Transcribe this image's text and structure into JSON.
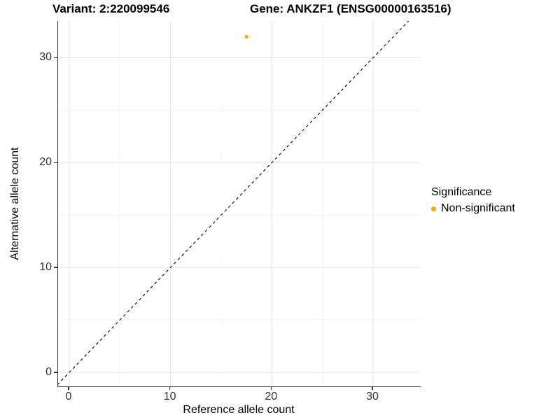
{
  "header": {
    "variant_title": "Variant: 2:220099546",
    "gene_title": "Gene: ANKZF1 (ENSG00000163516)"
  },
  "axes": {
    "x": {
      "label": "Reference allele count",
      "major_ticks": [
        0,
        10,
        20,
        30
      ],
      "minor_ticks": [
        5,
        15,
        25
      ]
    },
    "y": {
      "label": "Alternative allele count",
      "major_ticks": [
        0,
        10,
        20,
        30
      ],
      "minor_ticks": [
        5,
        15,
        25
      ]
    }
  },
  "legend": {
    "title": "Significance",
    "items": [
      {
        "label": "Non-significant",
        "color": "#FFA500"
      }
    ]
  },
  "colors": {
    "point": "#FFA500",
    "axis_line": "#333333",
    "grid_major": "#e7e7e7",
    "grid_minor": "#f3f3f3",
    "reference_line": "#111111"
  },
  "chart_data": {
    "type": "scatter",
    "title": "Variant: 2:220099546 — Gene: ANKZF1 (ENSG00000163516)",
    "xlabel": "Reference allele count",
    "ylabel": "Alternative allele count",
    "xlim": [
      -1.1,
      34.7
    ],
    "ylim": [
      -1.33,
      33.5
    ],
    "x_ticks": [
      0,
      10,
      20,
      30
    ],
    "y_ticks": [
      0,
      10,
      20,
      30
    ],
    "grid": true,
    "legend_position": "right",
    "series": [
      {
        "name": "Non-significant",
        "color": "#FFA500",
        "points": [
          {
            "x": 17.5,
            "y": 32
          }
        ]
      }
    ],
    "reference_line": {
      "slope": 1,
      "intercept": 0,
      "style": "dashed",
      "color": "#111111"
    }
  }
}
